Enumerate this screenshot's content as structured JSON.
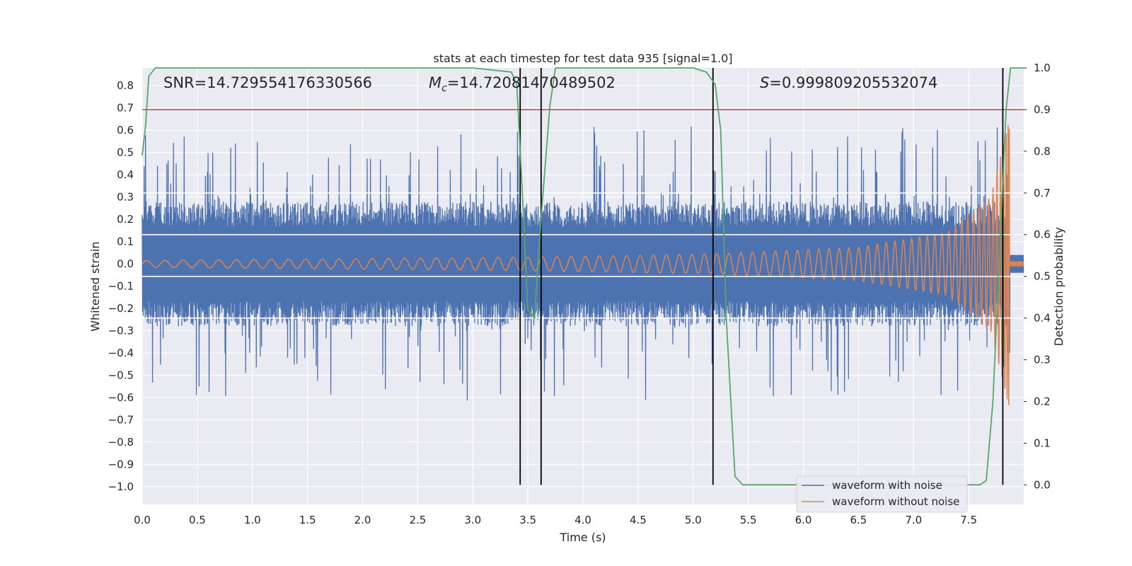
{
  "chart_data": {
    "type": "line",
    "title": "stats at each timestep for test data 935 [signal=1.0]",
    "xlabel": "Time (s)",
    "ylabel": "Whitened strain",
    "y2label": "Detection probability",
    "xlim": [
      0.0,
      8.0
    ],
    "ylim": [
      -1.08,
      0.88
    ],
    "y2lim": [
      -0.047,
      1.0
    ],
    "xticks": [
      "0.0",
      "0.5",
      "1.0",
      "1.5",
      "2.0",
      "2.5",
      "3.0",
      "3.5",
      "4.0",
      "4.5",
      "5.0",
      "5.5",
      "6.0",
      "6.5",
      "7.0",
      "7.5"
    ],
    "yticks": [
      "0.8",
      "0.7",
      "0.6",
      "0.5",
      "0.4",
      "0.3",
      "0.2",
      "0.1",
      "0.0",
      "−0.1",
      "−0.2",
      "−0.3",
      "−0.4",
      "−0.5",
      "−0.6",
      "−0.7",
      "−0.8",
      "−0.9",
      "−1.0"
    ],
    "y2ticks": [
      "1.0",
      "0.9",
      "0.8",
      "0.7",
      "0.6",
      "0.5",
      "0.4",
      "0.3",
      "0.2",
      "0.1",
      "0.0"
    ],
    "annotations": {
      "snr": "SNR=14.729554176330566",
      "mc_symbol": "M",
      "mc_sub": "c",
      "mc_value": "=14.72081470489502",
      "s_symbol": "S",
      "s_value": "=0.999809205532074"
    },
    "legend": {
      "placement": "lower-right",
      "entries": [
        "waveform with noise",
        "waveform without noise"
      ]
    },
    "colors": {
      "noise": "#4c72b0",
      "signal": "#dd8452",
      "probability": "#55a868",
      "threshold": "#c44e52",
      "vline": "#000000",
      "hline": "#ffffff",
      "background": "#eaeaf2"
    },
    "threshold_probability": 0.9,
    "white_hlines_probability": [
      0.7,
      0.6,
      0.5,
      0.4
    ],
    "vertical_lines_time": [
      3.43,
      3.62,
      5.18,
      7.81
    ],
    "series": [
      {
        "name": "waveform with noise",
        "noise_amplitude_typical": 0.28,
        "noise_amplitude_max": 0.73
      },
      {
        "name": "waveform without noise",
        "description_points": [
          [
            0.0,
            0.015
          ],
          [
            3.5,
            0.03
          ],
          [
            5.2,
            0.045
          ],
          [
            6.5,
            0.075
          ],
          [
            7.3,
            0.14
          ],
          [
            7.7,
            0.3
          ],
          [
            7.87,
            0.65
          ]
        ],
        "merger_time": 7.87
      },
      {
        "name": "detection probability",
        "x": [
          0.0,
          0.03,
          0.06,
          0.12,
          0.5,
          1.0,
          2.0,
          3.0,
          3.35,
          3.4,
          3.45,
          3.5,
          3.56,
          3.62,
          3.7,
          3.75,
          4.0,
          5.0,
          5.12,
          5.2,
          5.25,
          5.3,
          5.38,
          5.45,
          6.0,
          7.0,
          7.6,
          7.66,
          7.72,
          7.78,
          7.84,
          7.88,
          7.94,
          8.0
        ],
        "y": [
          0.79,
          0.86,
          0.98,
          1.0,
          1.0,
          1.0,
          1.0,
          1.0,
          0.99,
          0.96,
          0.7,
          0.42,
          0.4,
          0.64,
          0.91,
          1.0,
          1.0,
          1.0,
          0.99,
          0.96,
          0.85,
          0.4,
          0.02,
          0.0,
          0.0,
          0.0,
          0.0,
          0.01,
          0.2,
          0.55,
          0.9,
          1.0,
          1.0,
          1.0
        ]
      }
    ]
  }
}
